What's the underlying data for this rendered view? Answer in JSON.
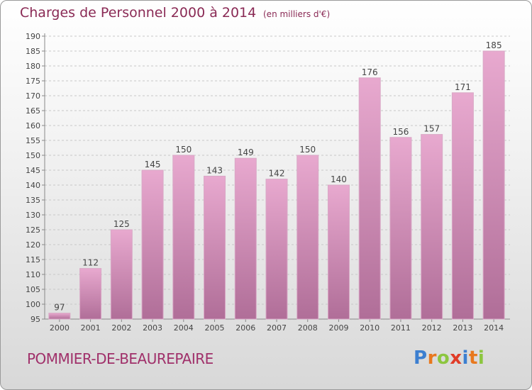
{
  "header": {
    "title": "Charges de Personnel 2000 à 2014",
    "subtitle": "(en milliers d'€)"
  },
  "footer": {
    "commune": "POMMIER-DE-BEAUREPAIRE",
    "logo_letters": [
      "P",
      "r",
      "o",
      "x",
      "i",
      "t",
      "i"
    ],
    "logo_colors": [
      "#3c7fd0",
      "#e8781e",
      "#8cc63f",
      "#e03c28",
      "#3c7fd0",
      "#e8781e",
      "#8cc63f"
    ]
  },
  "colors": {
    "bar_top": "#e8a9cf",
    "bar_bottom": "#b06e98",
    "title": "#8a2a55"
  },
  "chart_data": {
    "type": "bar",
    "categories": [
      "2000",
      "2001",
      "2002",
      "2003",
      "2004",
      "2005",
      "2006",
      "2007",
      "2008",
      "2009",
      "2010",
      "2011",
      "2012",
      "2013",
      "2014"
    ],
    "values": [
      97,
      112,
      125,
      145,
      150,
      143,
      149,
      142,
      150,
      140,
      176,
      156,
      157,
      171,
      185
    ],
    "data_labels": [
      "97",
      "112",
      "125",
      "145",
      "150",
      "143",
      "149",
      "142",
      "150",
      "140",
      "176",
      "156",
      "157",
      "171",
      "185"
    ],
    "yticks": [
      "95",
      "100",
      "105",
      "110",
      "115",
      "120",
      "125",
      "130",
      "135",
      "140",
      "145",
      "150",
      "155",
      "160",
      "165",
      "170",
      "175",
      "180",
      "185",
      "190"
    ],
    "ylim": [
      95,
      190
    ],
    "grid": true
  }
}
